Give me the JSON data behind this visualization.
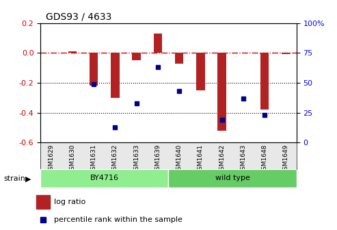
{
  "title": "GDS93 / 4633",
  "samples": [
    "GSM1629",
    "GSM1630",
    "GSM1631",
    "GSM1632",
    "GSM1633",
    "GSM1639",
    "GSM1640",
    "GSM1641",
    "GSM1642",
    "GSM1643",
    "GSM1648",
    "GSM1649"
  ],
  "log_ratio": [
    0.0,
    0.01,
    -0.22,
    -0.3,
    -0.05,
    0.13,
    -0.07,
    -0.25,
    -0.52,
    -0.0,
    -0.38,
    -0.01
  ],
  "percentile_rank": [
    null,
    null,
    49,
    13,
    33,
    63,
    43,
    null,
    19,
    37,
    23,
    null
  ],
  "strain_groups": [
    {
      "label": "BY4716",
      "start": 0,
      "end": 6,
      "color": "#90EE90"
    },
    {
      "label": "wild type",
      "start": 6,
      "end": 12,
      "color": "#66CC66"
    }
  ],
  "ylim": [
    -0.6,
    0.2
  ],
  "y2lim": [
    0,
    100
  ],
  "yticks": [
    -0.6,
    -0.4,
    -0.2,
    0.0,
    0.2
  ],
  "y2ticks": [
    0,
    25,
    50,
    75,
    100
  ],
  "bar_color": "#B22222",
  "dot_color": "#00008B",
  "zero_line_color": "#CC0000",
  "grid_color": "#000000",
  "legend_log_ratio": "log ratio",
  "legend_percentile": "percentile rank within the sample",
  "bar_width": 0.4
}
